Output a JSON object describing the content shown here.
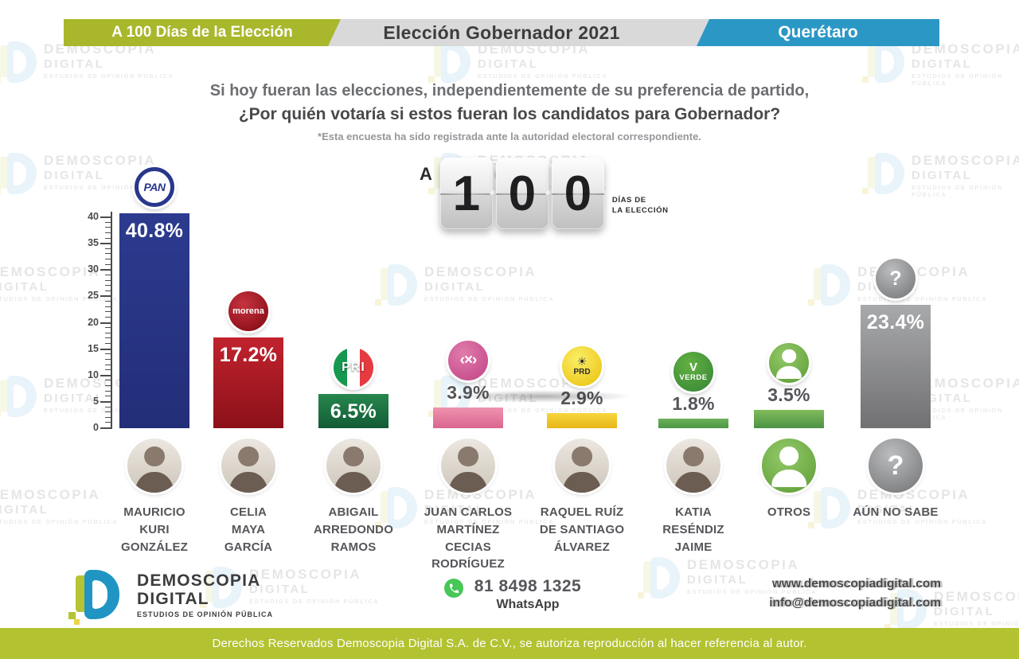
{
  "header": {
    "left_banner": "A 100 Días de la Elección",
    "center_banner": "Elección Gobernador 2021",
    "right_banner": "Querétaro"
  },
  "question": {
    "line1": "Si hoy fueran las elecciones, independientemente de su preferencia de partido,",
    "line2": "¿Por quién votaría si estos fueran los candidatos para Gobernador?",
    "footnote": "*Esta encuesta ha sido registrada ante la autoridad electoral correspondiente."
  },
  "countdown": {
    "prefix": "A",
    "digits": [
      "1",
      "0",
      "0"
    ],
    "days_line1": "DÍAS DE",
    "days_line2": "LA ELECCIÓN"
  },
  "watermark": {
    "title": "DEMOSCOPIA",
    "subtitle": "DIGITAL",
    "tagline": "ESTUDIOS DE OPINIÓN PÚBLICA"
  },
  "chart_data": {
    "type": "bar",
    "title": "¿Por quién votaría si estos fueran los candidatos para Gobernador?",
    "ylabel": "",
    "unit": "%",
    "ylim": [
      0,
      40
    ],
    "ytick_major": 5,
    "ytick_minor": 1,
    "grid": false,
    "legend": false,
    "bars": [
      {
        "party": "PAN",
        "candidate": "MAURICIO KURI GONZÁLEZ",
        "candidate_lines": [
          "MAURICIO",
          "KURI",
          "GONZÁLEZ"
        ],
        "value": 40.8,
        "label": "40.8%",
        "color_top": "#2c3b8f",
        "color_bottom": "#232e78",
        "label_placement": "inside",
        "logo": "pan",
        "logo_lines": [
          "PAN"
        ],
        "photo": "photo"
      },
      {
        "party": "MORENA",
        "candidate": "CELIA MAYA GARCÍA",
        "candidate_lines": [
          "CELIA",
          "MAYA",
          "GARCÍA"
        ],
        "value": 17.2,
        "label": "17.2%",
        "color_top": "#c1232e",
        "color_bottom": "#8c1019",
        "label_placement": "inside",
        "logo": "morena",
        "logo_lines": [
          "morena"
        ],
        "photo": "photo"
      },
      {
        "party": "PRI",
        "candidate": "ABIGAIL ARREDONDO RAMOS",
        "candidate_lines": [
          "ABIGAIL",
          "ARREDONDO",
          "RAMOS"
        ],
        "value": 6.5,
        "label": "6.5%",
        "color_top": "#27874e",
        "color_bottom": "#135c36",
        "label_placement": "inside",
        "logo": "pri",
        "logo_lines": [
          "PRI"
        ],
        "photo": "photo"
      },
      {
        "party": "MOVIMIENTO CIUDADANO",
        "candidate": "JUAN CARLOS MARTÍNEZ CECIAS RODRÍGUEZ",
        "candidate_lines": [
          "JUAN CARLOS",
          "MARTÍNEZ",
          "CECIAS",
          "RODRÍGUEZ"
        ],
        "value": 3.9,
        "label": "3.9%",
        "color_top": "#ef93b0",
        "color_bottom": "#da6590",
        "label_placement": "above",
        "logo": "mc",
        "logo_lines": [
          "‹×›"
        ],
        "photo": "photo"
      },
      {
        "party": "PRD",
        "candidate": "RAQUEL RUÍZ DE SANTIAGO ÁLVAREZ",
        "candidate_lines": [
          "RAQUEL RUÍZ",
          "DE SANTIAGO",
          "ÁLVAREZ"
        ],
        "value": 2.9,
        "label": "2.9%",
        "color_top": "#f7d63d",
        "color_bottom": "#e8b616",
        "label_placement": "above",
        "logo": "prd",
        "logo_lines": [
          "☀",
          "PRD"
        ],
        "photo": "photo"
      },
      {
        "party": "VERDE",
        "candidate": "KATIA RESÉNDIZ JAIME",
        "candidate_lines": [
          "KATIA",
          "RESÉNDIZ",
          "JAIME"
        ],
        "value": 1.8,
        "label": "1.8%",
        "color_top": "#6cb158",
        "color_bottom": "#4b9746",
        "label_placement": "above",
        "logo": "verde",
        "logo_lines": [
          "V",
          "VERDE"
        ],
        "photo": "photo"
      },
      {
        "party": "OTROS",
        "candidate": "OTROS",
        "candidate_lines": [
          "OTROS"
        ],
        "value": 3.5,
        "label": "3.5%",
        "color_top": "#82bc5b",
        "color_bottom": "#4b9245",
        "label_placement": "above",
        "logo": "person",
        "logo_lines": [],
        "photo": "person"
      },
      {
        "party": "AÚN NO SABE",
        "candidate": "AÚN NO SABE",
        "candidate_lines": [
          "AÚN NO SABE"
        ],
        "value": 23.4,
        "label": "23.4%",
        "color_top": "#a8a9ab",
        "color_bottom": "#717173",
        "label_placement": "inside",
        "logo": "question",
        "logo_lines": [
          "?"
        ],
        "photo": "question"
      }
    ]
  },
  "footer": {
    "brand_title": "DEMOSCOPIA",
    "brand_subtitle": "DIGITAL",
    "brand_tagline": "ESTUDIOS DE OPINIÓN PÚBLICA",
    "whatsapp_number": "81 8498 1325",
    "whatsapp_label": "WhatsApp",
    "website": "www.demoscopiadigital.com",
    "email": "info@demoscopiadigital.com"
  },
  "copyright": "Derechos Reservados Demoscopia Digital S.A. de C.V., se autoriza reproducción al hacer referencia al autor.",
  "colors": {
    "banner_green": "#a9b72c",
    "banner_gray": "#d9d9d9",
    "banner_blue": "#2b97c5",
    "copyright_green": "#b3c230"
  }
}
